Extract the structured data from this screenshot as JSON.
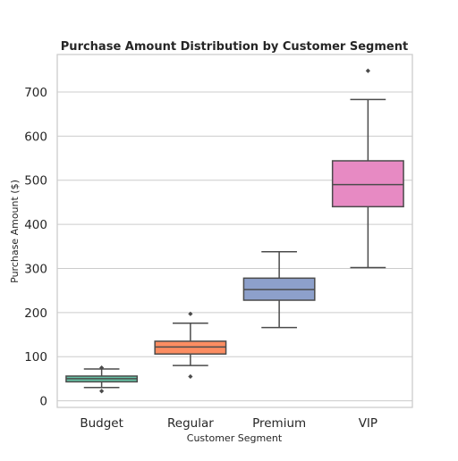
{
  "chart_data": {
    "type": "boxplot",
    "title": "Purchase Amount Distribution by Customer Segment",
    "xlabel": "Customer Segment",
    "ylabel": "Purchase Amount ($)",
    "ylim": [
      -15,
      785
    ],
    "yticks": [
      0,
      100,
      200,
      300,
      400,
      500,
      600,
      700
    ],
    "grid": true,
    "categories": [
      "Budget",
      "Regular",
      "Premium",
      "VIP"
    ],
    "colors": [
      "#66c2a5",
      "#fc8d62",
      "#8da0cb",
      "#e78ac3"
    ],
    "series": [
      {
        "category": "Budget",
        "whisker_low": 30,
        "q1": 43,
        "median": 50,
        "q3": 56,
        "whisker_high": 72,
        "outliers": [
          22,
          75
        ]
      },
      {
        "category": "Regular",
        "whisker_low": 80,
        "q1": 106,
        "median": 122,
        "q3": 135,
        "whisker_high": 176,
        "outliers": [
          55,
          197
        ]
      },
      {
        "category": "Premium",
        "whisker_low": 166,
        "q1": 228,
        "median": 252,
        "q3": 278,
        "whisker_high": 338,
        "outliers": []
      },
      {
        "category": "VIP",
        "whisker_low": 302,
        "q1": 440,
        "median": 490,
        "q3": 544,
        "whisker_high": 683,
        "outliers": [
          748
        ]
      }
    ]
  }
}
